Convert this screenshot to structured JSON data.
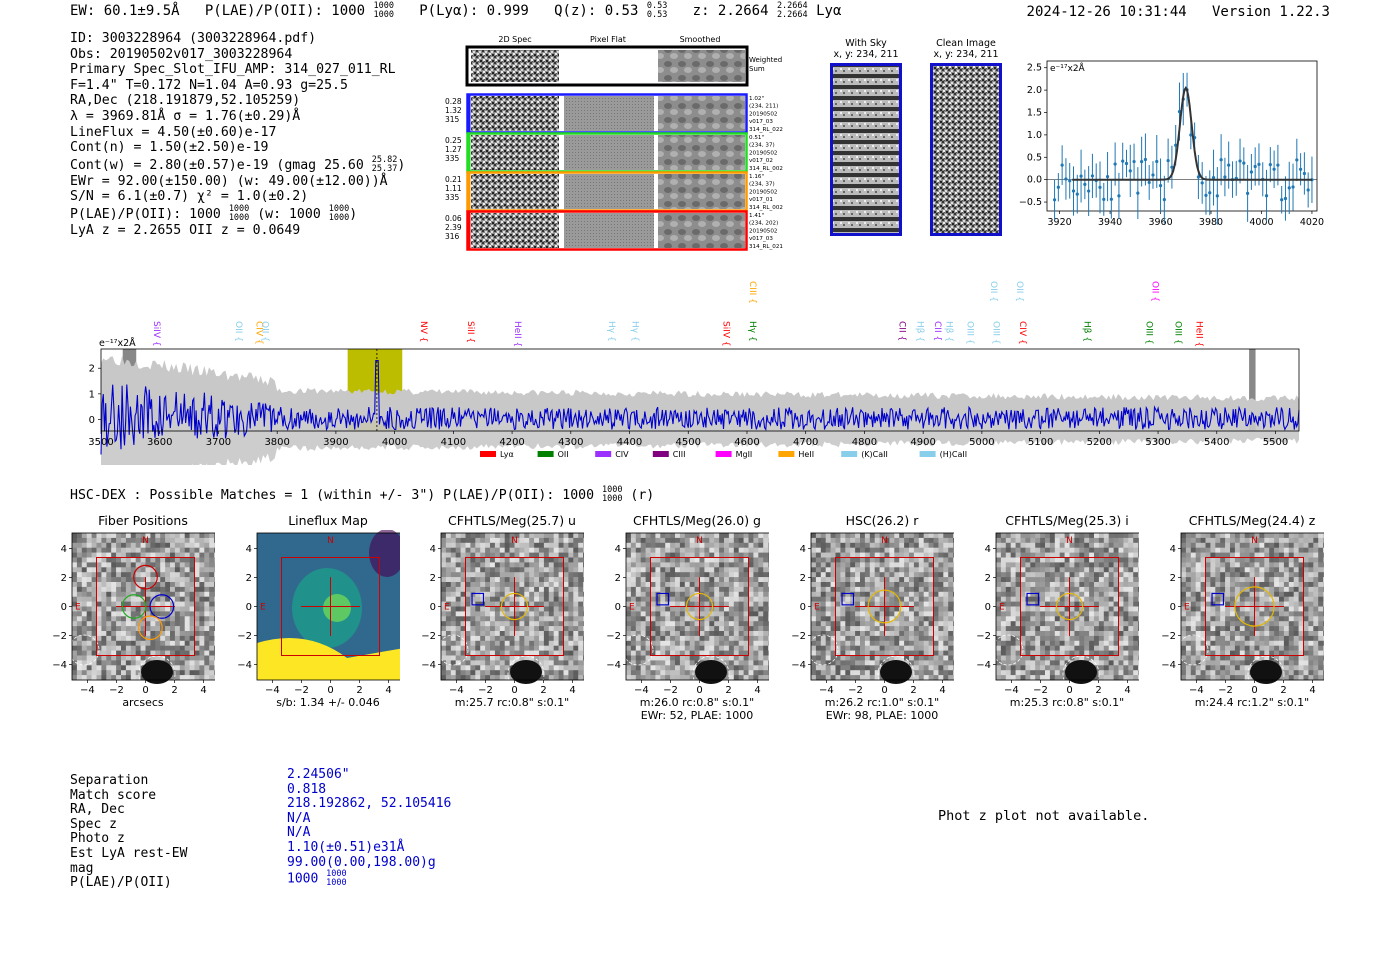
{
  "header": {
    "ew": "EW: 60.1±9.5Å",
    "plae_label": "P(LAE)/P(OII): 1000",
    "plae_sup": "1000",
    "plae_sub": "1000",
    "plya": "P(Lyα): 0.999",
    "qz_label": "Q(z): 0.53",
    "qz_sup": "0.53",
    "qz_sub": "0.53",
    "z_label": "z: 2.2664",
    "z_sup": "2.2664",
    "z_sub": "2.2664",
    "z_line": "Lyα",
    "timestamp": "2024-12-26 10:31:44",
    "version": "Version 1.22.3"
  },
  "info": {
    "l1": "ID: 3003228964 (3003228964.pdf)",
    "l2": "Obs: 20190502v017_3003228964",
    "l3": "Primary Spec_Slot_IFU_AMP: 314_027_011_RL",
    "l4": "F=1.4\"  T=0.172  N=1.04  A=0.93  g=25.5",
    "l5": "RA,Dec (218.191879,52.105259)",
    "l6": "λ = 3969.81Å  σ = 1.76(±0.29)Å",
    "l7": "LineFlux = 4.50(±0.60)e-17",
    "l8": "Cont(n) = 1.50(±2.50)e-19",
    "l9": "Cont(w) = 2.80(±0.57)e-19 (gmag 25.60",
    "l9_sup": "25.82",
    "l9_sub": "25.37",
    "l9_end": ")",
    "l10": "EWr = 92.00(±150.00) (w: 49.00(±12.00))Å",
    "l11": "S/N = 6.1(±0.7)  χ² = 1.0(±0.2)",
    "l12": "P(LAE)/P(OII): 1000",
    "l12_sup": "1000",
    "l12_sub": "1000",
    "l12_mid": " (w: 1000",
    "l12_sup2": "1000",
    "l12_sub2": "1000",
    "l12_end": ")",
    "l13": "LyA z = 2.2655   OII z = 0.0649"
  },
  "fiber_panel": {
    "col_2d": "2D Spec",
    "col_flat": "Pixel Flat",
    "col_smooth": "Smoothed",
    "weighted": "Weighted\nSum",
    "rows": [
      {
        "nums": [
          "0.28",
          "1.32",
          "315"
        ],
        "meta": [
          "1.02\"",
          "(234, 211)",
          "20190502",
          "v017_03",
          "314_RL_022"
        ],
        "color": "#1a1aff"
      },
      {
        "nums": [
          "0.25",
          "1.27",
          "335"
        ],
        "meta": [
          "0.51\"",
          "(234, 37)",
          "20190502",
          "v017_02",
          "314_RL_002"
        ],
        "color": "#22dd22"
      },
      {
        "nums": [
          "0.21",
          "1.11",
          "335"
        ],
        "meta": [
          "1.16\"",
          "(234, 37)",
          "20190502",
          "v017_01",
          "314_RL_002"
        ],
        "color": "#ff9900"
      },
      {
        "nums": [
          "0.06",
          "2.39",
          "316"
        ],
        "meta": [
          "1.41\"",
          "(234, 202)",
          "20190502",
          "v017_03",
          "314_RL_021"
        ],
        "color": "#ff0000"
      }
    ]
  },
  "sky_panel": {
    "with_sky": "With Sky",
    "with_sky_xy": "x, y: 234, 211",
    "clean": "Clean Image",
    "clean_xy": "x, y: 234, 211"
  },
  "zoom_chart": {
    "ylabel": "e⁻¹⁷x2Å",
    "yticks": [
      "2.5",
      "2.0",
      "1.5",
      "1.0",
      "0.5",
      "0.0",
      "−0.5"
    ],
    "xticks": [
      "3920",
      "3940",
      "3960",
      "3980",
      "4000",
      "4020"
    ]
  },
  "chart_data": {
    "type": "line",
    "title": "",
    "xlabel": "",
    "ylabel": "e⁻¹⁷x2Å",
    "xlim": [
      3500,
      5540
    ],
    "ylim": [
      -0.5,
      2.8
    ],
    "xticks": [
      3500,
      3600,
      3700,
      3800,
      3900,
      4000,
      4100,
      4200,
      4300,
      4400,
      4500,
      4600,
      4700,
      4800,
      4900,
      5000,
      5100,
      5200,
      5300,
      5400,
      5500
    ],
    "yticks": [
      0,
      1,
      2
    ],
    "highlight_window": [
      3920,
      4013
    ],
    "line_center": 3969.81,
    "line_labels": [
      {
        "label": "SiIV",
        "x": 3585,
        "tier": 0,
        "color": "#9b30ff"
      },
      {
        "label": "OII",
        "x": 3725,
        "tier": 0,
        "color": "#87ceeb"
      },
      {
        "label": "CIV",
        "x": 3760,
        "tier": 0,
        "color": "#ffa500"
      },
      {
        "label": "OII",
        "x": 3770,
        "tier": 0,
        "color": "#87ceeb"
      },
      {
        "label": "NV",
        "x": 4040,
        "tier": 0,
        "color": "#ff0000"
      },
      {
        "label": "SiII",
        "x": 4120,
        "tier": 0,
        "color": "#ff0000"
      },
      {
        "label": "HeII",
        "x": 4200,
        "tier": 0,
        "color": "#9b30ff"
      },
      {
        "label": "Hγ",
        "x": 4360,
        "tier": 0,
        "color": "#87ceeb"
      },
      {
        "label": "Hγ",
        "x": 4400,
        "tier": 0,
        "color": "#87ceeb"
      },
      {
        "label": "SiIV",
        "x": 4555,
        "tier": 0,
        "color": "#ff0000"
      },
      {
        "label": "Hγ",
        "x": 4600,
        "tier": 0,
        "color": "#008000"
      },
      {
        "label": "CIII",
        "x": 4600,
        "tier": 1,
        "color": "#ffa500"
      },
      {
        "label": "CII",
        "x": 4855,
        "tier": 0,
        "color": "#800080"
      },
      {
        "label": "Hβ",
        "x": 4885,
        "tier": 0,
        "color": "#87ceeb"
      },
      {
        "label": "CII",
        "x": 4915,
        "tier": 0,
        "color": "#9b30ff"
      },
      {
        "label": "Hβ",
        "x": 4935,
        "tier": 0,
        "color": "#87ceeb"
      },
      {
        "label": "OIII",
        "x": 4970,
        "tier": 0,
        "color": "#87ceeb"
      },
      {
        "label": "OIII",
        "x": 5015,
        "tier": 0,
        "color": "#87ceeb"
      },
      {
        "label": "CIV",
        "x": 5060,
        "tier": 0,
        "color": "#ff0000"
      },
      {
        "label": "OII",
        "x": 5010,
        "tier": 1,
        "color": "#87ceeb"
      },
      {
        "label": "OII",
        "x": 5055,
        "tier": 1,
        "color": "#87ceeb"
      },
      {
        "label": "Hβ",
        "x": 5170,
        "tier": 0,
        "color": "#008000"
      },
      {
        "label": "OIII",
        "x": 5275,
        "tier": 0,
        "color": "#008000"
      },
      {
        "label": "OIII",
        "x": 5325,
        "tier": 0,
        "color": "#008000"
      },
      {
        "label": "HeII",
        "x": 5360,
        "tier": 0,
        "color": "#ff0000"
      },
      {
        "label": "OII",
        "x": 5285,
        "tier": 1,
        "color": "#ff00ff"
      }
    ],
    "legend": [
      {
        "label": "Lyα",
        "color": "#ff0000"
      },
      {
        "label": "OII",
        "color": "#008000"
      },
      {
        "label": "CIV",
        "color": "#9b30ff"
      },
      {
        "label": "CIII",
        "color": "#800080"
      },
      {
        "label": "MgII",
        "color": "#ff00ff"
      },
      {
        "label": "HeII",
        "color": "#ffa500"
      },
      {
        "label": "(K)CaII",
        "color": "#87ceeb"
      },
      {
        "label": "(H)CaII",
        "color": "#87ceeb"
      }
    ],
    "zoom": {
      "type": "scatter",
      "xlim": [
        3915,
        4022
      ],
      "ylim": [
        -0.7,
        2.65
      ],
      "peak": {
        "x": 3970,
        "y": 2.05
      }
    }
  },
  "hsc": {
    "title": "HSC-DEX : Possible Matches = 1 (within +/- 3\")  P(LAE)/P(OII): 1000",
    "sup": "1000",
    "sub": "1000",
    "end": "(r)"
  },
  "cutouts": [
    {
      "title": "Fiber Positions",
      "sub1": "arcsecs",
      "sub2": ""
    },
    {
      "title": "Lineflux Map",
      "sub1": "s/b: 1.34 +/- 0.046",
      "sub2": ""
    },
    {
      "title": "CFHTLS/Meg(25.7) u",
      "sub1": "m:25.7 rc:0.8\"  s:0.1\"",
      "sub2": ""
    },
    {
      "title": "CFHTLS/Meg(26.0) g",
      "sub1": "m:26.0 rc:0.8\"  s:0.1\"",
      "sub2": "EWr: 52, PLAE: 1000"
    },
    {
      "title": "HSC(26.2) r",
      "sub1": "m:26.2 rc:1.0\"  s:0.1\"",
      "sub2": "EWr: 98, PLAE: 1000"
    },
    {
      "title": "CFHTLS/Meg(25.3) i",
      "sub1": "m:25.3 rc:0.8\"  s:0.1\"",
      "sub2": ""
    },
    {
      "title": "CFHTLS/Meg(24.4) z",
      "sub1": "m:24.4 rc:1.2\"  s:0.1\"",
      "sub2": ""
    }
  ],
  "cutout_axes": {
    "ticks": [
      "−4",
      "−2",
      "0",
      "2",
      "4"
    ],
    "compass_n": "N",
    "compass_e": "E"
  },
  "match_table": {
    "labels": [
      "Separation",
      "Match score",
      "RA, Dec",
      "Spec z",
      "Photo z",
      "Est LyA rest-EW",
      "mag",
      "P(LAE)/P(OII)"
    ],
    "values": [
      "2.24506\"",
      "0.818",
      "218.192862, 52.105416",
      "N/A",
      "N/A",
      "1.10(±0.51)e31Å",
      "99.00(0.00,198.00)g",
      "1000"
    ],
    "plae_sup": "1000",
    "plae_sub": "1000"
  },
  "photz_note": "Phot z plot not available."
}
